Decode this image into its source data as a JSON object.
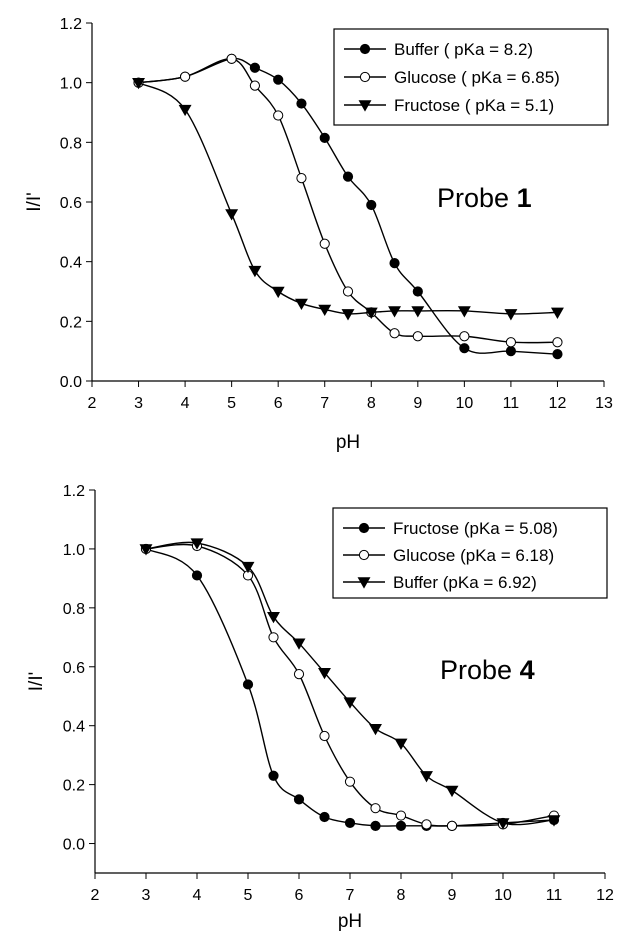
{
  "chart_data": [
    {
      "type": "line",
      "xlabel": "pH",
      "ylabel": "I/I'",
      "xlim": [
        2,
        13
      ],
      "ylim": [
        0,
        1.2
      ],
      "xticks": [
        2,
        3,
        4,
        5,
        6,
        7,
        8,
        9,
        10,
        11,
        12,
        13
      ],
      "yticks": [
        "0.0",
        "0.2",
        "0.4",
        "0.6",
        "0.8",
        "1.0",
        "1.2"
      ],
      "annotation": {
        "prefix": "Probe ",
        "number": "1"
      },
      "legend_position": "top-right",
      "series": [
        {
          "name": "Buffer ( pKa = 8.2)",
          "marker": "filled-circle",
          "x": [
            3,
            4,
            5,
            5.5,
            6,
            6.5,
            7,
            7.5,
            8,
            8.5,
            9,
            10,
            11,
            12
          ],
          "y": [
            1.0,
            1.02,
            1.08,
            1.05,
            1.01,
            0.93,
            0.815,
            0.685,
            0.59,
            0.395,
            0.3,
            0.11,
            0.1,
            0.09
          ]
        },
        {
          "name": "Glucose ( pKa = 6.85)",
          "marker": "open-circle",
          "x": [
            3,
            4,
            5,
            5.5,
            6,
            6.5,
            7,
            7.5,
            8,
            8.5,
            9,
            10,
            11,
            12
          ],
          "y": [
            1.0,
            1.02,
            1.08,
            0.99,
            0.89,
            0.68,
            0.46,
            0.3,
            0.23,
            0.16,
            0.15,
            0.15,
            0.13,
            0.13
          ]
        },
        {
          "name": "Fructose ( pKa = 5.1)",
          "marker": "filled-triangle-down",
          "x": [
            3,
            4,
            5,
            5.5,
            6,
            6.5,
            7,
            7.5,
            8,
            8.5,
            9,
            10,
            11,
            12
          ],
          "y": [
            1.0,
            0.91,
            0.56,
            0.37,
            0.3,
            0.26,
            0.24,
            0.225,
            0.23,
            0.235,
            0.235,
            0.235,
            0.225,
            0.23
          ]
        }
      ]
    },
    {
      "type": "line",
      "xlabel": "pH",
      "ylabel": "I/I'",
      "xlim": [
        2,
        12
      ],
      "ylim": [
        -0.1,
        1.2
      ],
      "xticks": [
        2,
        3,
        4,
        5,
        6,
        7,
        8,
        9,
        10,
        11,
        12
      ],
      "yticks": [
        "0.0",
        "0.2",
        "0.4",
        "0.6",
        "0.8",
        "1.0",
        "1.2"
      ],
      "annotation": {
        "prefix": "Probe ",
        "number": "4"
      },
      "legend_position": "top-right",
      "series": [
        {
          "name": "Fructose (pKa = 5.08)",
          "marker": "filled-circle",
          "x": [
            3,
            4,
            5,
            5.5,
            6,
            6.5,
            7,
            7.5,
            8,
            8.5,
            9,
            10,
            11
          ],
          "y": [
            1.0,
            0.91,
            0.54,
            0.23,
            0.15,
            0.09,
            0.07,
            0.06,
            0.06,
            0.06,
            0.06,
            0.07,
            0.08
          ]
        },
        {
          "name": "Glucose (pKa = 6.18)",
          "marker": "open-circle",
          "x": [
            3,
            4,
            5,
            5.5,
            6,
            6.5,
            7,
            7.5,
            8,
            8.5,
            9,
            10,
            11
          ],
          "y": [
            1.0,
            1.01,
            0.91,
            0.7,
            0.575,
            0.365,
            0.21,
            0.12,
            0.095,
            0.065,
            0.06,
            0.065,
            0.095
          ]
        },
        {
          "name": "Buffer (pKa = 6.92)",
          "marker": "filled-triangle-down",
          "x": [
            3,
            4,
            5,
            5.5,
            6,
            6.5,
            7,
            7.5,
            8,
            8.5,
            9,
            10,
            11
          ],
          "y": [
            1.0,
            1.02,
            0.94,
            0.77,
            0.68,
            0.58,
            0.48,
            0.39,
            0.34,
            0.23,
            0.18,
            0.07,
            0.08
          ]
        }
      ]
    }
  ]
}
